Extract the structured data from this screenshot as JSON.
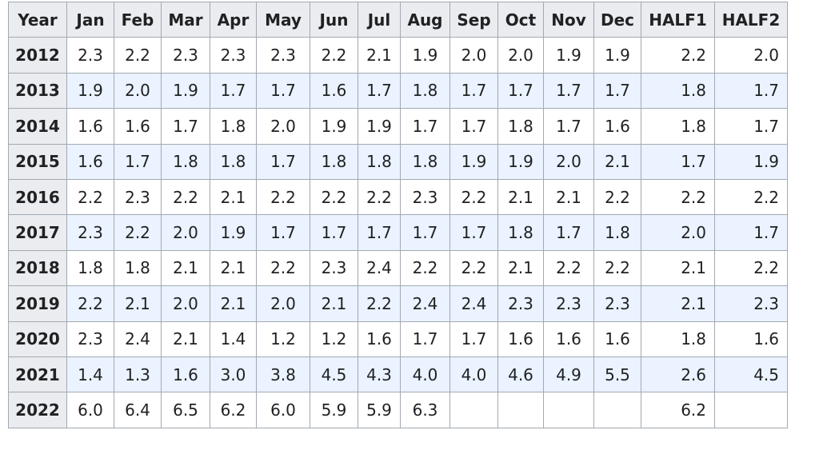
{
  "chart_data": {
    "type": "table",
    "columns": [
      "Year",
      "Jan",
      "Feb",
      "Mar",
      "Apr",
      "May",
      "Jun",
      "Jul",
      "Aug",
      "Sep",
      "Oct",
      "Nov",
      "Dec",
      "HALF1",
      "HALF2"
    ],
    "rows": [
      {
        "year": "2012",
        "values": [
          "2.3",
          "2.2",
          "2.3",
          "2.3",
          "2.3",
          "2.2",
          "2.1",
          "1.9",
          "2.0",
          "2.0",
          "1.9",
          "1.9",
          "2.2",
          "2.0"
        ]
      },
      {
        "year": "2013",
        "values": [
          "1.9",
          "2.0",
          "1.9",
          "1.7",
          "1.7",
          "1.6",
          "1.7",
          "1.8",
          "1.7",
          "1.7",
          "1.7",
          "1.7",
          "1.8",
          "1.7"
        ]
      },
      {
        "year": "2014",
        "values": [
          "1.6",
          "1.6",
          "1.7",
          "1.8",
          "2.0",
          "1.9",
          "1.9",
          "1.7",
          "1.7",
          "1.8",
          "1.7",
          "1.6",
          "1.8",
          "1.7"
        ]
      },
      {
        "year": "2015",
        "values": [
          "1.6",
          "1.7",
          "1.8",
          "1.8",
          "1.7",
          "1.8",
          "1.8",
          "1.8",
          "1.9",
          "1.9",
          "2.0",
          "2.1",
          "1.7",
          "1.9"
        ]
      },
      {
        "year": "2016",
        "values": [
          "2.2",
          "2.3",
          "2.2",
          "2.1",
          "2.2",
          "2.2",
          "2.2",
          "2.3",
          "2.2",
          "2.1",
          "2.1",
          "2.2",
          "2.2",
          "2.2"
        ]
      },
      {
        "year": "2017",
        "values": [
          "2.3",
          "2.2",
          "2.0",
          "1.9",
          "1.7",
          "1.7",
          "1.7",
          "1.7",
          "1.7",
          "1.8",
          "1.7",
          "1.8",
          "2.0",
          "1.7"
        ]
      },
      {
        "year": "2018",
        "values": [
          "1.8",
          "1.8",
          "2.1",
          "2.1",
          "2.2",
          "2.3",
          "2.4",
          "2.2",
          "2.2",
          "2.1",
          "2.2",
          "2.2",
          "2.1",
          "2.2"
        ]
      },
      {
        "year": "2019",
        "values": [
          "2.2",
          "2.1",
          "2.0",
          "2.1",
          "2.0",
          "2.1",
          "2.2",
          "2.4",
          "2.4",
          "2.3",
          "2.3",
          "2.3",
          "2.1",
          "2.3"
        ]
      },
      {
        "year": "2020",
        "values": [
          "2.3",
          "2.4",
          "2.1",
          "1.4",
          "1.2",
          "1.2",
          "1.6",
          "1.7",
          "1.7",
          "1.6",
          "1.6",
          "1.6",
          "1.8",
          "1.6"
        ]
      },
      {
        "year": "2021",
        "values": [
          "1.4",
          "1.3",
          "1.6",
          "3.0",
          "3.8",
          "4.5",
          "4.3",
          "4.0",
          "4.0",
          "4.6",
          "4.9",
          "5.5",
          "2.6",
          "4.5"
        ]
      },
      {
        "year": "2022",
        "values": [
          "6.0",
          "6.4",
          "6.5",
          "6.2",
          "6.0",
          "5.9",
          "5.9",
          "6.3",
          "",
          "",
          "",
          "",
          "6.2",
          ""
        ]
      }
    ]
  },
  "colors": {
    "header_bg": "#eaecf0",
    "row_alt_bg": "#eaf3ff",
    "border": "#a2a9b1",
    "text": "#202122"
  }
}
